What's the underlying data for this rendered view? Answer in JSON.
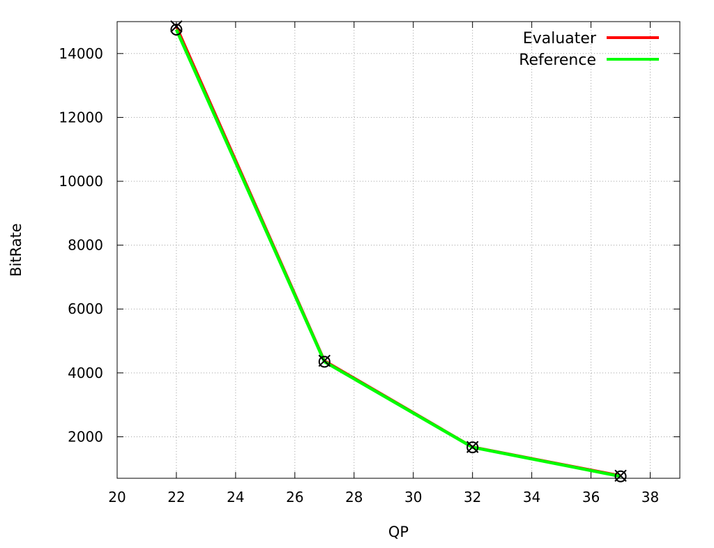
{
  "chart_data": {
    "type": "line",
    "title": "",
    "xlabel": "QP",
    "ylabel": "BitRate",
    "xlim": [
      20,
      39
    ],
    "ylim": [
      700,
      15000
    ],
    "x_ticks": [
      20,
      22,
      24,
      26,
      28,
      30,
      32,
      34,
      36,
      38
    ],
    "y_ticks": [
      2000,
      4000,
      6000,
      8000,
      10000,
      12000,
      14000
    ],
    "grid": true,
    "legend_position": "top-right",
    "series": [
      {
        "name": "Evaluater",
        "color": "#ff0000",
        "marker": "x-cross",
        "x": [
          22,
          27,
          32,
          37
        ],
        "y": [
          14850,
          4380,
          1680,
          780
        ]
      },
      {
        "name": "Reference",
        "color": "#00ff00",
        "marker": "circle",
        "x": [
          22,
          27,
          32,
          37
        ],
        "y": [
          14750,
          4350,
          1670,
          760
        ]
      }
    ]
  }
}
